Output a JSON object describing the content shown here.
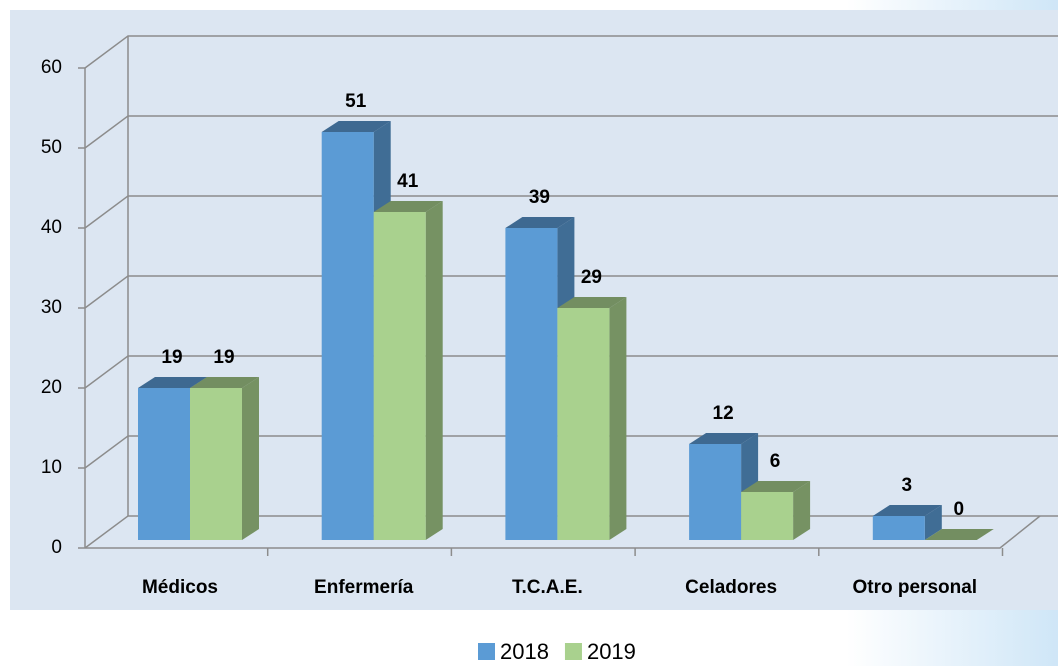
{
  "chart_data": {
    "type": "bar3d",
    "categories": [
      "Médicos",
      "Enfermería",
      "T.C.A.E.",
      "Celadores",
      "Otro personal"
    ],
    "series": [
      {
        "name": "2018",
        "color": "#5b9bd5",
        "values": [
          19,
          51,
          39,
          12,
          3
        ]
      },
      {
        "name": "2019",
        "color": "#a9d18e",
        "values": [
          19,
          41,
          29,
          6,
          0
        ]
      }
    ],
    "ylim": [
      0,
      60
    ],
    "yticks": [
      0,
      10,
      20,
      30,
      40,
      50,
      60
    ],
    "grid": true,
    "legend": "bottom"
  }
}
